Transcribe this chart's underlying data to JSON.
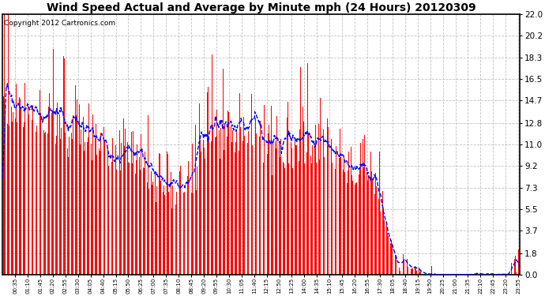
{
  "title": "Wind Speed Actual and Average by Minute mph (24 Hours) 20120309",
  "copyright": "Copyright 2012 Cartronics.com",
  "yticks": [
    0.0,
    1.8,
    3.7,
    5.5,
    7.3,
    9.2,
    11.0,
    12.8,
    14.7,
    16.5,
    18.3,
    20.2,
    22.0
  ],
  "ymin": 0.0,
  "ymax": 22.0,
  "bar_color": "#FF0000",
  "line_color": "#0000FF",
  "background_color": "#FFFFFF",
  "grid_color": "#BBBBBB",
  "title_fontsize": 10,
  "copyright_fontsize": 6.5
}
